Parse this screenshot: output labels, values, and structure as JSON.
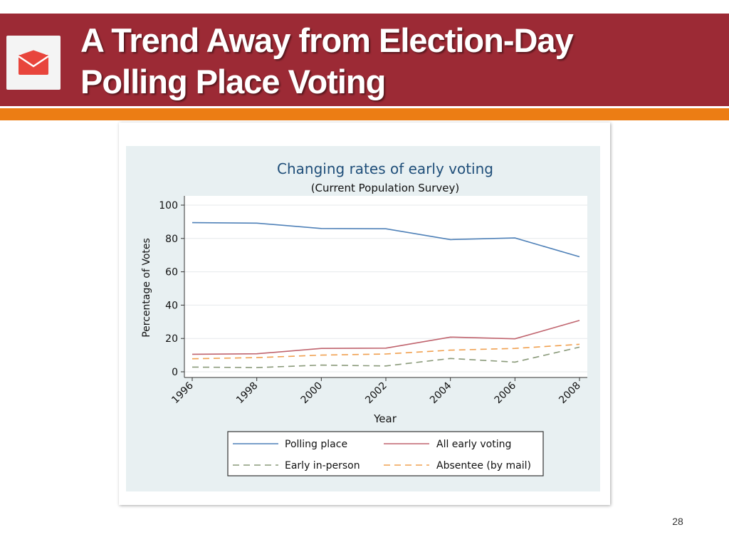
{
  "slide": {
    "title_line1": "A Trend Away from Election-Day",
    "title_line2": "Polling Place Voting",
    "page_number": "28",
    "icon": "envelope-icon"
  },
  "colors": {
    "title_bar": "#9c2a35",
    "accent_stripe": "#ec7d14",
    "chart_background": "#e8f0f2",
    "title_color": "#1f4e79"
  },
  "chart_data": {
    "type": "line",
    "title": "Changing rates of early voting",
    "subtitle": "(Current Population Survey)",
    "xlabel": "Year",
    "ylabel": "Percentage of Votes",
    "x": [
      "1996",
      "1998",
      "2000",
      "2002",
      "2004",
      "2006",
      "2008"
    ],
    "ylim": [
      0,
      100
    ],
    "yticks": [
      "0",
      "20",
      "40",
      "60",
      "80",
      "100"
    ],
    "grid": true,
    "legend_position": "bottom",
    "series": [
      {
        "name": "Polling place",
        "color": "#4f81b8",
        "dash": "solid",
        "values": [
          89.5,
          89.2,
          86.0,
          85.8,
          79.3,
          80.3,
          69.0
        ]
      },
      {
        "name": "All early voting",
        "color": "#c0646e",
        "dash": "solid",
        "values": [
          10.5,
          10.8,
          14.0,
          14.2,
          20.8,
          19.8,
          30.8
        ]
      },
      {
        "name": "Early in-person",
        "color": "#8a9a7a",
        "dash": "dashed",
        "values": [
          2.8,
          2.5,
          4.0,
          3.5,
          8.0,
          5.8,
          14.8
        ]
      },
      {
        "name": "Absentee (by mail)",
        "color": "#f0a050",
        "dash": "dashed",
        "values": [
          7.8,
          8.5,
          10.0,
          10.7,
          13.0,
          14.0,
          16.5
        ]
      }
    ]
  }
}
